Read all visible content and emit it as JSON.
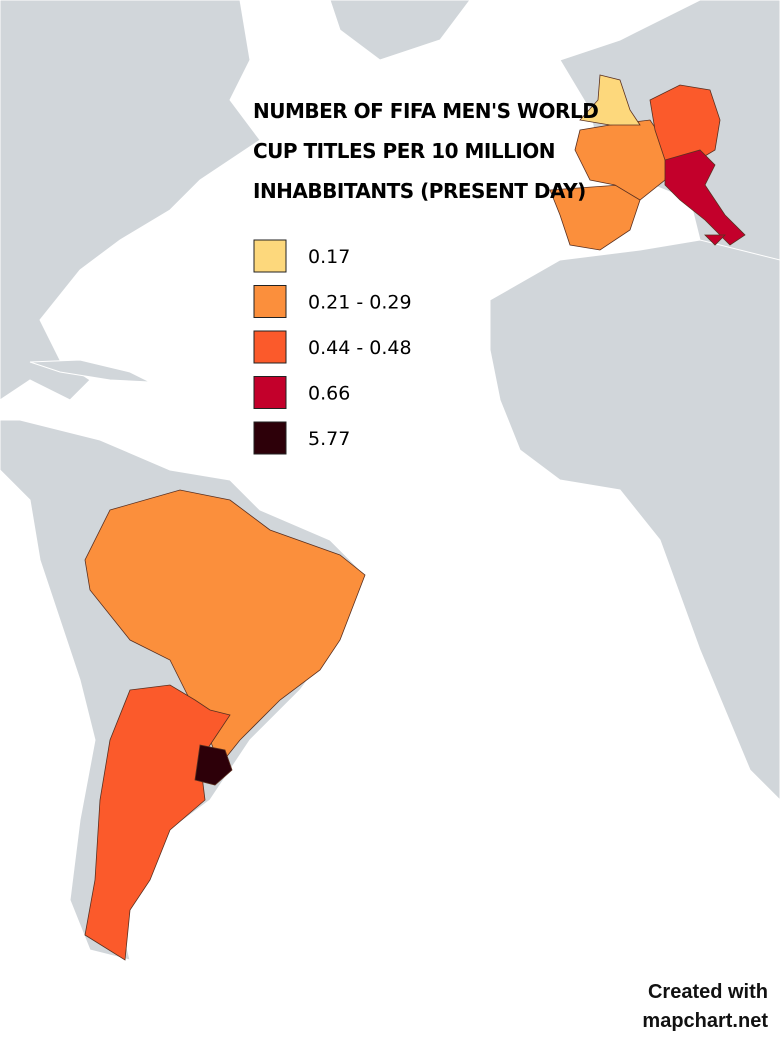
{
  "title_lines": [
    "NUMBER OF FIFA MEN'S WORLD",
    "CUP TITLES PER 10 MILLION",
    "INHABBITANTS (PRESENT DAY)"
  ],
  "legend": [
    {
      "label": "0.17",
      "color": "#fdd87c"
    },
    {
      "label": "0.21 - 0.29",
      "color": "#fb8f3c"
    },
    {
      "label": "0.44 - 0.48",
      "color": "#fb5a2b"
    },
    {
      "label": "0.66",
      "color": "#c3002b"
    },
    {
      "label": "5.77",
      "color": "#2d0009"
    }
  ],
  "credit": [
    "Created with",
    "mapchart.net"
  ]
}
